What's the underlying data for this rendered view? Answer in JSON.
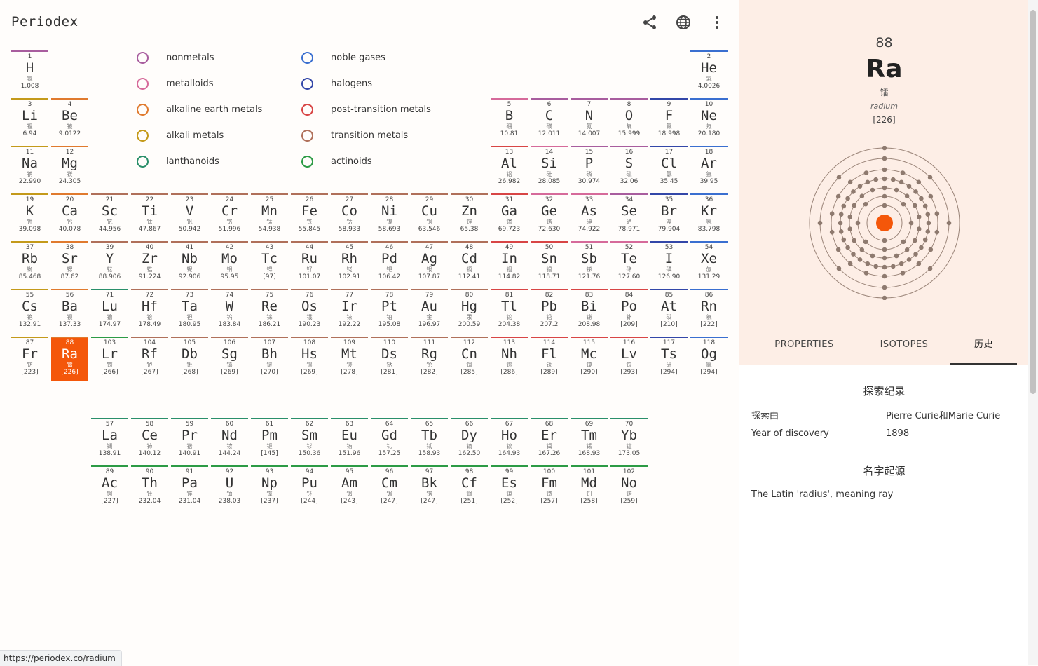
{
  "app": {
    "title": "Periodex"
  },
  "toolbar": {
    "share_icon": "share-icon",
    "language_icon": "globe-icon",
    "menu_icon": "more-vert-icon"
  },
  "colors": {
    "nonmetals": "#a85d9e",
    "metalloids": "#d66a9a",
    "alkaline_earth_metals": "#e07a2e",
    "alkali_metals": "#c49a1a",
    "lanthanoids": "#2a8f6a",
    "noble_gases": "#3a6fd0",
    "halogens": "#3347a8",
    "post_transition_metals": "#d84545",
    "transition_metals": "#b0705a",
    "actinoids": "#2c9b45",
    "selected": "#f4570a",
    "panel_bg": "#fdeee6"
  },
  "legend": [
    {
      "label": "nonmetals",
      "category": "nonmetals"
    },
    {
      "label": "metalloids",
      "category": "metalloids"
    },
    {
      "label": "alkaline earth metals",
      "category": "alkaline_earth_metals"
    },
    {
      "label": "alkali metals",
      "category": "alkali_metals"
    },
    {
      "label": "lanthanoids",
      "category": "lanthanoids"
    },
    {
      "label": "noble gases",
      "category": "noble_gases"
    },
    {
      "label": "halogens",
      "category": "halogens"
    },
    {
      "label": "post-transition metals",
      "category": "post_transition_metals"
    },
    {
      "label": "transition metals",
      "category": "transition_metals"
    },
    {
      "label": "actinoids",
      "category": "actinoids"
    }
  ],
  "elements": [
    {
      "n": "1",
      "s": "H",
      "z": "氢",
      "m": "1.008",
      "c": "nonmetals"
    },
    {
      "n": "2",
      "s": "He",
      "z": "氦",
      "m": "4.0026",
      "c": "noble_gases"
    },
    {
      "n": "3",
      "s": "Li",
      "z": "锂",
      "m": "6.94",
      "c": "alkali_metals"
    },
    {
      "n": "4",
      "s": "Be",
      "z": "铍",
      "m": "9.0122",
      "c": "alkaline_earth_metals"
    },
    {
      "n": "5",
      "s": "B",
      "z": "硼",
      "m": "10.81",
      "c": "metalloids"
    },
    {
      "n": "6",
      "s": "C",
      "z": "碳",
      "m": "12.011",
      "c": "nonmetals"
    },
    {
      "n": "7",
      "s": "N",
      "z": "氮",
      "m": "14.007",
      "c": "nonmetals"
    },
    {
      "n": "8",
      "s": "O",
      "z": "氧",
      "m": "15.999",
      "c": "nonmetals"
    },
    {
      "n": "9",
      "s": "F",
      "z": "氟",
      "m": "18.998",
      "c": "halogens"
    },
    {
      "n": "10",
      "s": "Ne",
      "z": "氖",
      "m": "20.180",
      "c": "noble_gases"
    },
    {
      "n": "11",
      "s": "Na",
      "z": "钠",
      "m": "22.990",
      "c": "alkali_metals"
    },
    {
      "n": "12",
      "s": "Mg",
      "z": "镁",
      "m": "24.305",
      "c": "alkaline_earth_metals"
    },
    {
      "n": "13",
      "s": "Al",
      "z": "铝",
      "m": "26.982",
      "c": "post_transition_metals"
    },
    {
      "n": "14",
      "s": "Si",
      "z": "硅",
      "m": "28.085",
      "c": "metalloids"
    },
    {
      "n": "15",
      "s": "P",
      "z": "磷",
      "m": "30.974",
      "c": "nonmetals"
    },
    {
      "n": "16",
      "s": "S",
      "z": "硫",
      "m": "32.06",
      "c": "nonmetals"
    },
    {
      "n": "17",
      "s": "Cl",
      "z": "氯",
      "m": "35.45",
      "c": "halogens"
    },
    {
      "n": "18",
      "s": "Ar",
      "z": "氩",
      "m": "39.95",
      "c": "noble_gases"
    },
    {
      "n": "19",
      "s": "K",
      "z": "钾",
      "m": "39.098",
      "c": "alkali_metals"
    },
    {
      "n": "20",
      "s": "Ca",
      "z": "钙",
      "m": "40.078",
      "c": "alkaline_earth_metals"
    },
    {
      "n": "21",
      "s": "Sc",
      "z": "钪",
      "m": "44.956",
      "c": "transition_metals"
    },
    {
      "n": "22",
      "s": "Ti",
      "z": "钛",
      "m": "47.867",
      "c": "transition_metals"
    },
    {
      "n": "23",
      "s": "V",
      "z": "钒",
      "m": "50.942",
      "c": "transition_metals"
    },
    {
      "n": "24",
      "s": "Cr",
      "z": "铬",
      "m": "51.996",
      "c": "transition_metals"
    },
    {
      "n": "25",
      "s": "Mn",
      "z": "锰",
      "m": "54.938",
      "c": "transition_metals"
    },
    {
      "n": "26",
      "s": "Fe",
      "z": "铁",
      "m": "55.845",
      "c": "transition_metals"
    },
    {
      "n": "27",
      "s": "Co",
      "z": "钴",
      "m": "58.933",
      "c": "transition_metals"
    },
    {
      "n": "28",
      "s": "Ni",
      "z": "镍",
      "m": "58.693",
      "c": "transition_metals"
    },
    {
      "n": "29",
      "s": "Cu",
      "z": "铜",
      "m": "63.546",
      "c": "transition_metals"
    },
    {
      "n": "30",
      "s": "Zn",
      "z": "锌",
      "m": "65.38",
      "c": "transition_metals"
    },
    {
      "n": "31",
      "s": "Ga",
      "z": "镓",
      "m": "69.723",
      "c": "post_transition_metals"
    },
    {
      "n": "32",
      "s": "Ge",
      "z": "锗",
      "m": "72.630",
      "c": "metalloids"
    },
    {
      "n": "33",
      "s": "As",
      "z": "砷",
      "m": "74.922",
      "c": "metalloids"
    },
    {
      "n": "34",
      "s": "Se",
      "z": "硒",
      "m": "78.971",
      "c": "nonmetals"
    },
    {
      "n": "35",
      "s": "Br",
      "z": "溴",
      "m": "79.904",
      "c": "halogens"
    },
    {
      "n": "36",
      "s": "Kr",
      "z": "氪",
      "m": "83.798",
      "c": "noble_gases"
    },
    {
      "n": "37",
      "s": "Rb",
      "z": "铷",
      "m": "85.468",
      "c": "alkali_metals"
    },
    {
      "n": "38",
      "s": "Sr",
      "z": "锶",
      "m": "87.62",
      "c": "alkaline_earth_metals"
    },
    {
      "n": "39",
      "s": "Y",
      "z": "钇",
      "m": "88.906",
      "c": "transition_metals"
    },
    {
      "n": "40",
      "s": "Zr",
      "z": "锆",
      "m": "91.224",
      "c": "transition_metals"
    },
    {
      "n": "41",
      "s": "Nb",
      "z": "铌",
      "m": "92.906",
      "c": "transition_metals"
    },
    {
      "n": "42",
      "s": "Mo",
      "z": "钼",
      "m": "95.95",
      "c": "transition_metals"
    },
    {
      "n": "43",
      "s": "Tc",
      "z": "锝",
      "m": "[97]",
      "c": "transition_metals"
    },
    {
      "n": "44",
      "s": "Ru",
      "z": "钌",
      "m": "101.07",
      "c": "transition_metals"
    },
    {
      "n": "45",
      "s": "Rh",
      "z": "铑",
      "m": "102.91",
      "c": "transition_metals"
    },
    {
      "n": "46",
      "s": "Pd",
      "z": "钯",
      "m": "106.42",
      "c": "transition_metals"
    },
    {
      "n": "47",
      "s": "Ag",
      "z": "银",
      "m": "107.87",
      "c": "transition_metals"
    },
    {
      "n": "48",
      "s": "Cd",
      "z": "镉",
      "m": "112.41",
      "c": "transition_metals"
    },
    {
      "n": "49",
      "s": "In",
      "z": "铟",
      "m": "114.82",
      "c": "post_transition_metals"
    },
    {
      "n": "50",
      "s": "Sn",
      "z": "锡",
      "m": "118.71",
      "c": "post_transition_metals"
    },
    {
      "n": "51",
      "s": "Sb",
      "z": "锑",
      "m": "121.76",
      "c": "metalloids"
    },
    {
      "n": "52",
      "s": "Te",
      "z": "碲",
      "m": "127.60",
      "c": "metalloids"
    },
    {
      "n": "53",
      "s": "I",
      "z": "碘",
      "m": "126.90",
      "c": "halogens"
    },
    {
      "n": "54",
      "s": "Xe",
      "z": "氙",
      "m": "131.29",
      "c": "noble_gases"
    },
    {
      "n": "55",
      "s": "Cs",
      "z": "铯",
      "m": "132.91",
      "c": "alkali_metals"
    },
    {
      "n": "56",
      "s": "Ba",
      "z": "钡",
      "m": "137.33",
      "c": "alkaline_earth_metals"
    },
    {
      "n": "71",
      "s": "Lu",
      "z": "镥",
      "m": "174.97",
      "c": "lanthanoids"
    },
    {
      "n": "72",
      "s": "Hf",
      "z": "铪",
      "m": "178.49",
      "c": "transition_metals"
    },
    {
      "n": "73",
      "s": "Ta",
      "z": "钽",
      "m": "180.95",
      "c": "transition_metals"
    },
    {
      "n": "74",
      "s": "W",
      "z": "钨",
      "m": "183.84",
      "c": "transition_metals"
    },
    {
      "n": "75",
      "s": "Re",
      "z": "铼",
      "m": "186.21",
      "c": "transition_metals"
    },
    {
      "n": "76",
      "s": "Os",
      "z": "锇",
      "m": "190.23",
      "c": "transition_metals"
    },
    {
      "n": "77",
      "s": "Ir",
      "z": "铱",
      "m": "192.22",
      "c": "transition_metals"
    },
    {
      "n": "78",
      "s": "Pt",
      "z": "铂",
      "m": "195.08",
      "c": "transition_metals"
    },
    {
      "n": "79",
      "s": "Au",
      "z": "金",
      "m": "196.97",
      "c": "transition_metals"
    },
    {
      "n": "80",
      "s": "Hg",
      "z": "汞",
      "m": "200.59",
      "c": "transition_metals"
    },
    {
      "n": "81",
      "s": "Tl",
      "z": "铊",
      "m": "204.38",
      "c": "post_transition_metals"
    },
    {
      "n": "82",
      "s": "Pb",
      "z": "铅",
      "m": "207.2",
      "c": "post_transition_metals"
    },
    {
      "n": "83",
      "s": "Bi",
      "z": "铋",
      "m": "208.98",
      "c": "post_transition_metals"
    },
    {
      "n": "84",
      "s": "Po",
      "z": "钋",
      "m": "[209]",
      "c": "post_transition_metals"
    },
    {
      "n": "85",
      "s": "At",
      "z": "砹",
      "m": "[210]",
      "c": "halogens"
    },
    {
      "n": "86",
      "s": "Rn",
      "z": "氡",
      "m": "[222]",
      "c": "noble_gases"
    },
    {
      "n": "87",
      "s": "Fr",
      "z": "钫",
      "m": "[223]",
      "c": "alkali_metals"
    },
    {
      "n": "88",
      "s": "Ra",
      "z": "镭",
      "m": "[226]",
      "c": "alkaline_earth_metals",
      "selected": true
    },
    {
      "n": "103",
      "s": "Lr",
      "z": "铹",
      "m": "[266]",
      "c": "actinoids"
    },
    {
      "n": "104",
      "s": "Rf",
      "z": "𬬻",
      "m": "[267]",
      "c": "transition_metals"
    },
    {
      "n": "105",
      "s": "Db",
      "z": "𬭊",
      "m": "[268]",
      "c": "transition_metals"
    },
    {
      "n": "106",
      "s": "Sg",
      "z": "𬭳",
      "m": "[269]",
      "c": "transition_metals"
    },
    {
      "n": "107",
      "s": "Bh",
      "z": "𬭛",
      "m": "[270]",
      "c": "transition_metals"
    },
    {
      "n": "108",
      "s": "Hs",
      "z": "𬭶",
      "m": "[269]",
      "c": "transition_metals"
    },
    {
      "n": "109",
      "s": "Mt",
      "z": "鿏",
      "m": "[278]",
      "c": "transition_metals"
    },
    {
      "n": "110",
      "s": "Ds",
      "z": "𫟼",
      "m": "[281]",
      "c": "transition_metals"
    },
    {
      "n": "111",
      "s": "Rg",
      "z": "𬬭",
      "m": "[282]",
      "c": "transition_metals"
    },
    {
      "n": "112",
      "s": "Cn",
      "z": "鿔",
      "m": "[285]",
      "c": "transition_metals"
    },
    {
      "n": "113",
      "s": "Nh",
      "z": "鿭",
      "m": "[286]",
      "c": "post_transition_metals"
    },
    {
      "n": "114",
      "s": "Fl",
      "z": "𫓧",
      "m": "[289]",
      "c": "post_transition_metals"
    },
    {
      "n": "115",
      "s": "Mc",
      "z": "镆",
      "m": "[290]",
      "c": "post_transition_metals"
    },
    {
      "n": "116",
      "s": "Lv",
      "z": "𫟷",
      "m": "[293]",
      "c": "post_transition_metals"
    },
    {
      "n": "117",
      "s": "Ts",
      "z": "鿬",
      "m": "[294]",
      "c": "halogens"
    },
    {
      "n": "118",
      "s": "Og",
      "z": "鿫",
      "m": "[294]",
      "c": "noble_gases"
    },
    {
      "n": "57",
      "s": "La",
      "z": "镧",
      "m": "138.91",
      "c": "lanthanoids"
    },
    {
      "n": "58",
      "s": "Ce",
      "z": "铈",
      "m": "140.12",
      "c": "lanthanoids"
    },
    {
      "n": "59",
      "s": "Pr",
      "z": "镨",
      "m": "140.91",
      "c": "lanthanoids"
    },
    {
      "n": "60",
      "s": "Nd",
      "z": "钕",
      "m": "144.24",
      "c": "lanthanoids"
    },
    {
      "n": "61",
      "s": "Pm",
      "z": "钷",
      "m": "[145]",
      "c": "lanthanoids"
    },
    {
      "n": "62",
      "s": "Sm",
      "z": "钐",
      "m": "150.36",
      "c": "lanthanoids"
    },
    {
      "n": "63",
      "s": "Eu",
      "z": "铕",
      "m": "151.96",
      "c": "lanthanoids"
    },
    {
      "n": "64",
      "s": "Gd",
      "z": "钆",
      "m": "157.25",
      "c": "lanthanoids"
    },
    {
      "n": "65",
      "s": "Tb",
      "z": "铽",
      "m": "158.93",
      "c": "lanthanoids"
    },
    {
      "n": "66",
      "s": "Dy",
      "z": "镝",
      "m": "162.50",
      "c": "lanthanoids"
    },
    {
      "n": "67",
      "s": "Ho",
      "z": "钬",
      "m": "164.93",
      "c": "lanthanoids"
    },
    {
      "n": "68",
      "s": "Er",
      "z": "铒",
      "m": "167.26",
      "c": "lanthanoids"
    },
    {
      "n": "69",
      "s": "Tm",
      "z": "铥",
      "m": "168.93",
      "c": "lanthanoids"
    },
    {
      "n": "70",
      "s": "Yb",
      "z": "镱",
      "m": "173.05",
      "c": "lanthanoids"
    },
    {
      "n": "89",
      "s": "Ac",
      "z": "锕",
      "m": "[227]",
      "c": "actinoids"
    },
    {
      "n": "90",
      "s": "Th",
      "z": "钍",
      "m": "232.04",
      "c": "actinoids"
    },
    {
      "n": "91",
      "s": "Pa",
      "z": "镤",
      "m": "231.04",
      "c": "actinoids"
    },
    {
      "n": "92",
      "s": "U",
      "z": "铀",
      "m": "238.03",
      "c": "actinoids"
    },
    {
      "n": "93",
      "s": "Np",
      "z": "镎",
      "m": "[237]",
      "c": "actinoids"
    },
    {
      "n": "94",
      "s": "Pu",
      "z": "钚",
      "m": "[244]",
      "c": "actinoids"
    },
    {
      "n": "95",
      "s": "Am",
      "z": "镅",
      "m": "[243]",
      "c": "actinoids"
    },
    {
      "n": "96",
      "s": "Cm",
      "z": "锔",
      "m": "[247]",
      "c": "actinoids"
    },
    {
      "n": "97",
      "s": "Bk",
      "z": "锫",
      "m": "[247]",
      "c": "actinoids"
    },
    {
      "n": "98",
      "s": "Cf",
      "z": "锎",
      "m": "[251]",
      "c": "actinoids"
    },
    {
      "n": "99",
      "s": "Es",
      "z": "锿",
      "m": "[252]",
      "c": "actinoids"
    },
    {
      "n": "100",
      "s": "Fm",
      "z": "镄",
      "m": "[257]",
      "c": "actinoids"
    },
    {
      "n": "101",
      "s": "Md",
      "z": "钔",
      "m": "[258]",
      "c": "actinoids"
    },
    {
      "n": "102",
      "s": "No",
      "z": "锘",
      "m": "[259]",
      "c": "actinoids"
    }
  ],
  "detail": {
    "number": "88",
    "symbol": "Ra",
    "chinese": "镭",
    "name": "radium",
    "mass": "[226]",
    "electron_shells": [
      2,
      8,
      18,
      32,
      18,
      8,
      2
    ],
    "tabs": [
      {
        "label": "PROPERTIES",
        "active": false
      },
      {
        "label": "ISOTOPES",
        "active": false
      },
      {
        "label": "历史",
        "active": true
      }
    ],
    "discovery": {
      "title": "探索纪录",
      "rows": [
        {
          "key": "探索由",
          "value": "Pierre Curie和Marie Curie"
        },
        {
          "key": "Year of discovery",
          "value": "1898"
        }
      ]
    },
    "name_origin": {
      "title": "名字起源",
      "text": "The Latin 'radius', meaning ray"
    }
  },
  "status_bar": {
    "url": "https://periodex.co/radium"
  }
}
